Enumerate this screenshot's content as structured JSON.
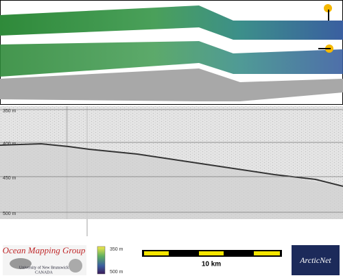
{
  "profile": {
    "depth_labels": [
      "350 m",
      "400 m",
      "450 m",
      "500 m"
    ]
  },
  "footer": {
    "logo": {
      "title": "Ocean Mapping Group",
      "line1": "University of New Brunswick",
      "line2": "CANADA"
    },
    "colorbar": {
      "top": "350 m",
      "bottom": "500 m"
    },
    "scale": "10 km",
    "partner": "ArcticNet"
  }
}
